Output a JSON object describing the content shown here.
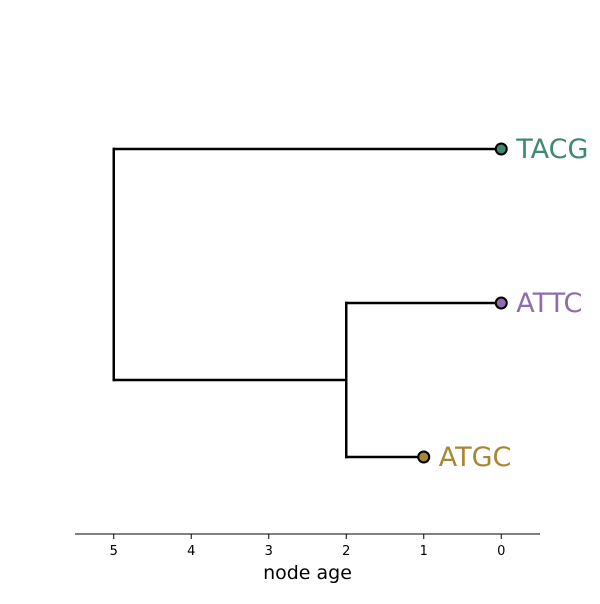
{
  "chart_data": {
    "type": "phylogenetic-tree",
    "xlabel": "node age",
    "xlim": [
      5.5,
      -0.5
    ],
    "x_ticks": [
      5,
      4,
      3,
      2,
      1,
      0
    ],
    "tips": [
      {
        "label": "TACG",
        "age": 0,
        "color": "#3f8a6e"
      },
      {
        "label": "ATTC",
        "age": 0,
        "color": "#8c6eac"
      },
      {
        "label": "ATGC",
        "age": 1,
        "color": "#a88734"
      }
    ],
    "internal_nodes": [
      {
        "name": "root",
        "age": 5,
        "children": [
          "TACG",
          "inner"
        ]
      },
      {
        "name": "inner",
        "age": 2,
        "children": [
          "ATTC",
          "ATGC"
        ]
      }
    ],
    "grid": false
  }
}
